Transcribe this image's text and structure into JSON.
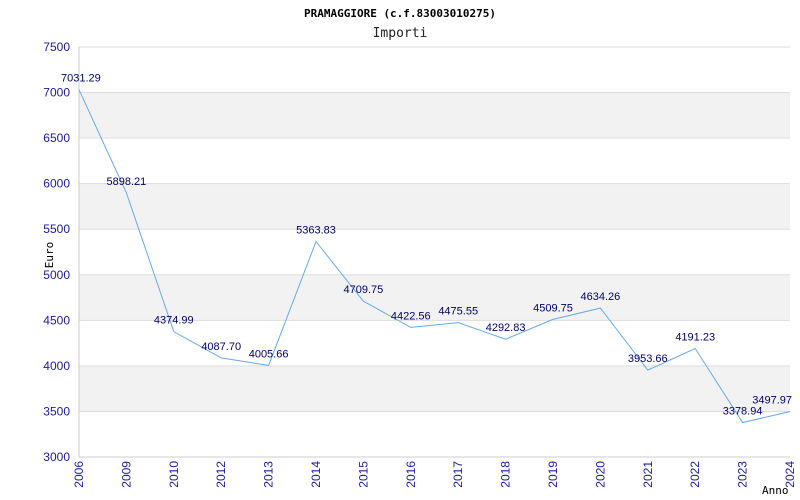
{
  "chart_data": {
    "type": "line",
    "title": "PRAMAGGIORE (c.f.83003010275)",
    "subtitle": "Importi",
    "xlabel": "Anno",
    "ylabel": "Euro",
    "ylim": [
      3000,
      7500
    ],
    "yticks": [
      "3000",
      "3500",
      "4000",
      "4500",
      "5000",
      "5500",
      "6000",
      "6500",
      "7000",
      "7500"
    ],
    "categories": [
      "2006",
      "2009",
      "2010",
      "2012",
      "2013",
      "2014",
      "2015",
      "2016",
      "2017",
      "2018",
      "2019",
      "2020",
      "2021",
      "2022",
      "2023",
      "2024"
    ],
    "values": [
      7031.29,
      5898.21,
      4374.99,
      4087.7,
      4005.66,
      5363.83,
      4709.75,
      4422.56,
      4475.55,
      4292.83,
      4509.75,
      4634.26,
      3953.66,
      4191.23,
      3378.94,
      3497.97
    ],
    "labels": [
      "7031.29",
      "5898.21",
      "4374.99",
      "4087.70",
      "4005.66",
      "5363.83",
      "4709.75",
      "4422.56",
      "4475.55",
      "4292.83",
      "4509.75",
      "4634.26",
      "3953.66",
      "4191.23",
      "3378.94",
      "3497.97"
    ],
    "line_color": "#66aaee",
    "band_color": "#f2f2f2",
    "tick_color": "#1a1aa8",
    "label_color": "#00006e"
  }
}
